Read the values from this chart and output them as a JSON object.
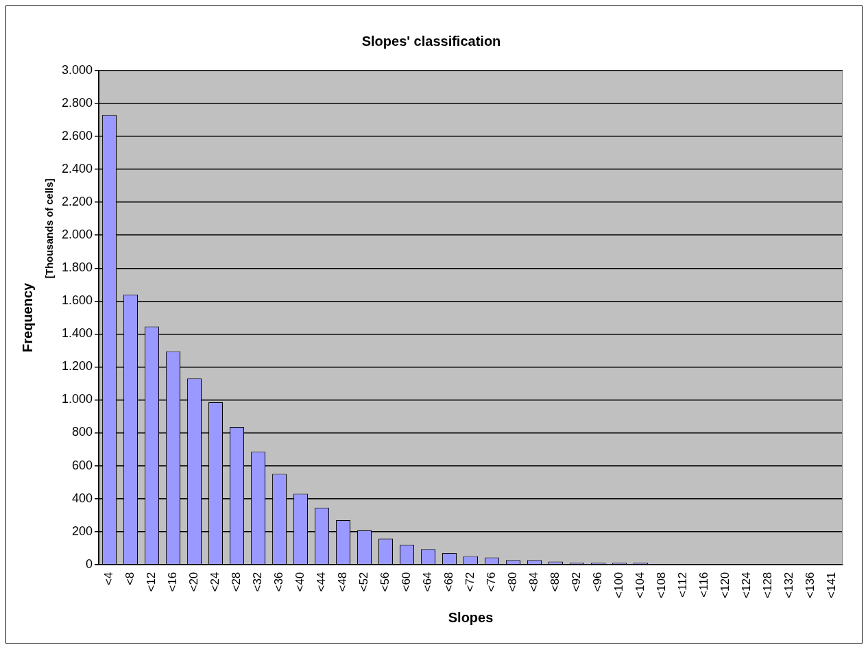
{
  "chart_data": {
    "type": "bar",
    "title": "Slopes' classification",
    "xlabel": "Slopes",
    "ylabel": "Frequency",
    "annotations": [
      "[Thousands of cells]"
    ],
    "categories": [
      "<4",
      "<8",
      "<12",
      "<16",
      "<20",
      "<24",
      "<28",
      "<32",
      "<36",
      "<40",
      "<44",
      "<48",
      "<52",
      "<56",
      "<60",
      "<64",
      "<68",
      "<72",
      "<76",
      "<80",
      "<84",
      "<88",
      "<92",
      "<96",
      "<100",
      "<104",
      "<108",
      "<112",
      "<116",
      "<120",
      "<124",
      "<128",
      "<132",
      "<136",
      "<141"
    ],
    "values": [
      2730,
      1640,
      1445,
      1295,
      1130,
      985,
      835,
      685,
      550,
      430,
      345,
      269,
      207,
      157,
      121,
      94,
      70,
      51,
      43,
      27,
      27,
      18,
      10,
      10,
      10,
      10,
      0,
      0,
      0,
      0,
      0,
      0,
      0,
      0,
      0
    ],
    "color": "#9999ff",
    "ylim": [
      0,
      3000
    ],
    "yticks": [
      0,
      200,
      400,
      600,
      800,
      {
        "value": 1000,
        "label": "1.000"
      },
      {
        "value": 1200,
        "label": "1.200"
      },
      {
        "value": 1400,
        "label": "1.400"
      },
      {
        "value": 1600,
        "label": "1.600"
      },
      {
        "value": 1800,
        "label": "1.800"
      },
      {
        "value": 2000,
        "label": "2.000"
      },
      {
        "value": 2200,
        "label": "2.200"
      },
      {
        "value": 2400,
        "label": "2.400"
      },
      {
        "value": 2600,
        "label": "2.600"
      },
      {
        "value": 2800,
        "label": "2.800"
      },
      {
        "value": 3000,
        "label": "3.000"
      }
    ],
    "grid": "y",
    "legend": false
  }
}
